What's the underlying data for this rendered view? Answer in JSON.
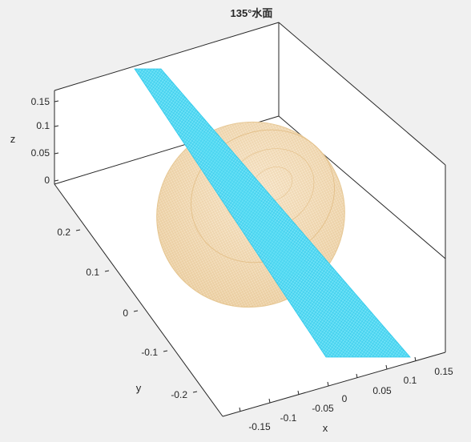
{
  "chart_data": {
    "type": "surface3d",
    "title": "135°水面",
    "xlabel": "x",
    "ylabel": "y",
    "zlabel": "z",
    "x_ticks": [
      "-0.15",
      "-0.1",
      "-0.05",
      "0",
      "0.05",
      "0.1",
      "0.15"
    ],
    "y_ticks": [
      "-0.2",
      "-0.1",
      "0",
      "0.1",
      "0.2"
    ],
    "z_ticks": [
      "0",
      "0.05",
      "0.1",
      "0.15"
    ],
    "colors": {
      "background": "#f0f0f0",
      "axes_face": "#ffffff",
      "ellipsoid_mesh": "#f2d6a8",
      "plane_mesh": "#3fd5f2",
      "axis_line": "#262626"
    },
    "series": [
      {
        "surface": "ellipsoid",
        "color": "#f2d6a8"
      },
      {
        "surface": "water_plane_135deg",
        "color": "#3fd5f2"
      }
    ]
  }
}
